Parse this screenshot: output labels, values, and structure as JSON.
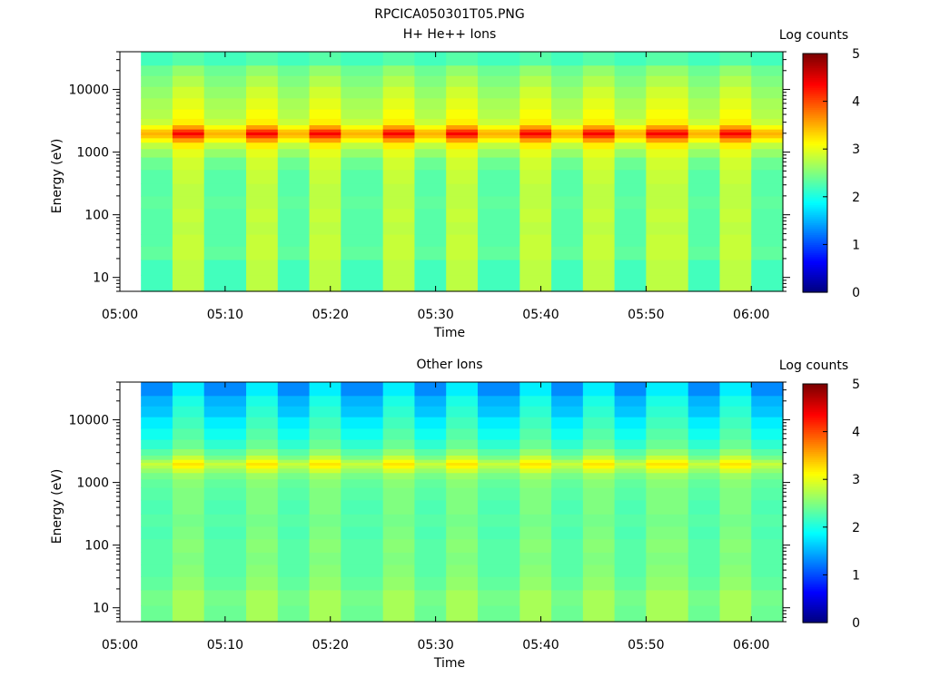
{
  "figure_title": "RPCICA050301T05.PNG",
  "chart_data": [
    {
      "type": "heatmap",
      "title": "H+ He++ Ions",
      "xlabel": "Time",
      "ylabel": "Energy (eV)",
      "x_ticks": [
        "05:00",
        "05:10",
        "05:20",
        "05:30",
        "05:40",
        "05:50",
        "06:00"
      ],
      "xlim": [
        "05:00",
        "06:03"
      ],
      "y_scale": "log",
      "y_ticks": [
        "10",
        "100",
        "1000",
        "10000"
      ],
      "ylim": [
        6,
        40000
      ],
      "colorbar": {
        "label": "Log counts",
        "range": [
          0,
          5
        ],
        "ticks": [
          "0",
          "1",
          "2",
          "3",
          "4",
          "5"
        ]
      },
      "time_bins": [
        "05:02",
        "05:05",
        "05:08",
        "05:12",
        "05:15",
        "05:18",
        "05:21",
        "05:25",
        "05:28",
        "05:31",
        "05:34",
        "05:38",
        "05:41",
        "05:44",
        "05:47",
        "05:50",
        "05:54",
        "05:57",
        "06:00",
        "06:03"
      ],
      "bin_pattern": "alternating",
      "energy_profile": {
        "energy_eV": [
          8,
          15,
          25,
          40,
          60,
          100,
          160,
          250,
          400,
          700,
          1000,
          1300,
          1600,
          1800,
          2000,
          2200,
          2500,
          3000,
          4000,
          6000,
          9000,
          14000,
          20000,
          30000
        ],
        "log_counts_high": [
          2.8,
          2.8,
          2.85,
          2.85,
          2.8,
          2.85,
          2.8,
          2.8,
          2.85,
          2.9,
          3.0,
          3.2,
          3.6,
          4.1,
          4.4,
          4.1,
          3.6,
          3.2,
          3.1,
          3.0,
          2.9,
          2.75,
          2.6,
          2.3
        ],
        "log_counts_low": [
          2.2,
          2.2,
          2.35,
          2.3,
          2.3,
          2.3,
          2.35,
          2.3,
          2.3,
          2.4,
          2.6,
          2.8,
          3.1,
          3.4,
          3.5,
          3.4,
          3.1,
          2.85,
          2.75,
          2.7,
          2.6,
          2.5,
          2.4,
          2.2
        ]
      }
    },
    {
      "type": "heatmap",
      "title": "Other Ions",
      "xlabel": "Time",
      "ylabel": "Energy (eV)",
      "x_ticks": [
        "05:00",
        "05:10",
        "05:20",
        "05:30",
        "05:40",
        "05:50",
        "06:00"
      ],
      "xlim": [
        "05:00",
        "06:03"
      ],
      "y_scale": "log",
      "y_ticks": [
        "10",
        "100",
        "1000",
        "10000"
      ],
      "ylim": [
        6,
        40000
      ],
      "colorbar": {
        "label": "Log counts",
        "range": [
          0,
          5
        ],
        "ticks": [
          "0",
          "1",
          "2",
          "3",
          "4",
          "5"
        ]
      },
      "time_bins": [
        "05:02",
        "05:05",
        "05:08",
        "05:12",
        "05:15",
        "05:18",
        "05:21",
        "05:25",
        "05:28",
        "05:31",
        "05:34",
        "05:38",
        "05:41",
        "05:44",
        "05:47",
        "05:50",
        "05:54",
        "05:57",
        "06:00",
        "06:03"
      ],
      "bin_pattern": "alternating",
      "energy_profile": {
        "energy_eV": [
          8,
          15,
          25,
          40,
          60,
          100,
          160,
          250,
          400,
          700,
          1000,
          1300,
          1600,
          1800,
          2000,
          2200,
          2500,
          3000,
          4000,
          6000,
          9000,
          14000,
          20000,
          30000
        ],
        "log_counts_high": [
          2.7,
          2.7,
          2.6,
          2.55,
          2.5,
          2.55,
          2.5,
          2.45,
          2.5,
          2.5,
          2.55,
          2.65,
          2.9,
          3.15,
          3.25,
          3.1,
          2.85,
          2.6,
          2.4,
          2.3,
          2.2,
          2.1,
          2.0,
          1.8
        ],
        "log_counts_low": [
          2.4,
          2.45,
          2.35,
          2.3,
          2.3,
          2.3,
          2.25,
          2.3,
          2.25,
          2.3,
          2.35,
          2.45,
          2.6,
          2.75,
          2.85,
          2.7,
          2.45,
          2.3,
          2.1,
          1.95,
          1.8,
          1.6,
          1.5,
          1.3
        ]
      }
    }
  ]
}
